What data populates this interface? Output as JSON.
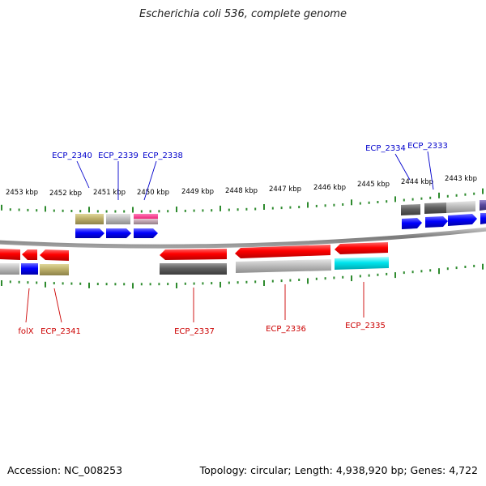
{
  "title": "Escherichia coli 536, complete genome",
  "accession_text": "Accession: NC_008253",
  "summary_text": "Topology: circular; Length: 4,938,920 bp; Genes: 4,722",
  "colors": {
    "backbone": "#8a8a8a",
    "tick": "#2e8b2e",
    "label_top_strand": "#0000cc",
    "label_bottom_strand": "#cc0000",
    "gene_forward": "#0000ff",
    "gene_reverse": "#ff0000"
  },
  "scale_labels": [
    "2453 kbp",
    "2452 kbp",
    "2451 kbp",
    "2450 kbp",
    "2449 kbp",
    "2448 kbp",
    "2447 kbp",
    "2446 kbp",
    "2445 kbp",
    "2444 kbp",
    "2443 kbp"
  ],
  "top_labels": [
    "ECP_2340",
    "ECP_2339",
    "ECP_2338",
    "ECP_2334",
    "ECP_2333"
  ],
  "bottom_labels": [
    "folX",
    "ECP_2341",
    "ECP_2337",
    "ECP_2336",
    "ECP_2335"
  ]
}
